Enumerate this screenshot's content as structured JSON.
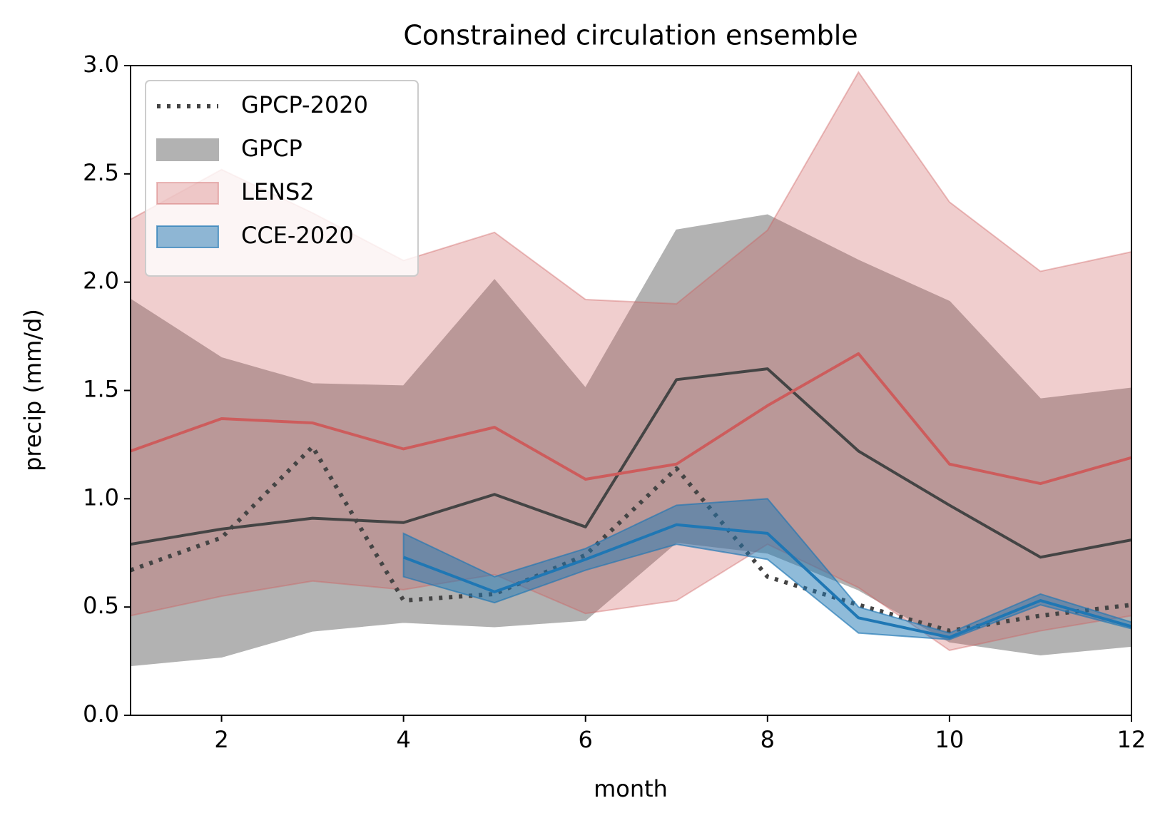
{
  "chart_data": {
    "type": "line",
    "title": "Constrained circulation ensemble",
    "x_label": "month",
    "y_label": "precip (mm/d)",
    "x": [
      1,
      2,
      3,
      4,
      5,
      6,
      7,
      8,
      9,
      10,
      11,
      12
    ],
    "xlim": [
      1,
      12
    ],
    "xticks": [
      2,
      4,
      6,
      8,
      10,
      12
    ],
    "ylim": [
      0,
      3
    ],
    "yticks": [
      {
        "value": 0,
        "label": "0.0"
      },
      {
        "value": 0.5,
        "label": "0.5"
      },
      {
        "value": 1,
        "label": "1.0"
      },
      {
        "value": 1.5,
        "label": "1.5"
      },
      {
        "value": 2,
        "label": "2.0"
      },
      {
        "value": 2.5,
        "label": "2.5"
      },
      {
        "value": 3,
        "label": "3.0"
      }
    ],
    "legend": "upper left",
    "bands": [
      {
        "name": "GPCP",
        "color": "#b2b2b2",
        "opacity": 1,
        "line_color": "#444444",
        "lower": [
          0.23,
          0.27,
          0.39,
          0.43,
          0.41,
          0.44,
          0.8,
          0.75,
          0.58,
          0.34,
          0.28,
          0.32
        ],
        "upper": [
          1.92,
          1.65,
          1.53,
          1.52,
          2.01,
          1.51,
          2.24,
          2.31,
          2.1,
          1.91,
          1.46,
          1.51
        ],
        "mean": [
          0.79,
          0.86,
          0.91,
          0.89,
          1.02,
          0.87,
          1.55,
          1.6,
          1.22,
          0.97,
          0.73,
          0.81
        ]
      },
      {
        "name": "LENS2",
        "color": "#cd5c5c",
        "opacity": 0.3,
        "line_color": "#cd5c5c",
        "lower": [
          0.46,
          0.55,
          0.62,
          0.58,
          0.65,
          0.47,
          0.53,
          0.79,
          0.59,
          0.3,
          0.39,
          0.46
        ],
        "upper": [
          2.29,
          2.52,
          2.32,
          2.1,
          2.23,
          1.92,
          1.9,
          2.24,
          2.97,
          2.37,
          2.05,
          2.14
        ],
        "mean": [
          1.22,
          1.37,
          1.35,
          1.23,
          1.33,
          1.09,
          1.16,
          1.43,
          1.67,
          1.16,
          1.07,
          1.19
        ]
      },
      {
        "name": "CCE-2020",
        "color": "#1f77b4",
        "opacity": 0.5,
        "line_color": "#1f77b4",
        "lower": [
          null,
          null,
          null,
          0.64,
          0.52,
          0.67,
          0.79,
          0.72,
          0.38,
          0.35,
          0.51,
          0.4
        ],
        "upper": [
          null,
          null,
          null,
          0.84,
          0.64,
          0.77,
          0.97,
          1.0,
          0.5,
          0.38,
          0.56,
          0.43
        ],
        "mean": [
          null,
          null,
          null,
          0.73,
          0.57,
          0.72,
          0.88,
          0.84,
          0.45,
          0.36,
          0.53,
          0.41
        ]
      }
    ],
    "series": [
      {
        "name": "GPCP-2020",
        "color": "#444444",
        "linestyle": "dotted",
        "values": [
          0.67,
          0.82,
          1.24,
          0.53,
          0.56,
          0.74,
          1.14,
          0.64,
          0.51,
          0.39,
          0.46,
          0.51
        ]
      }
    ]
  }
}
